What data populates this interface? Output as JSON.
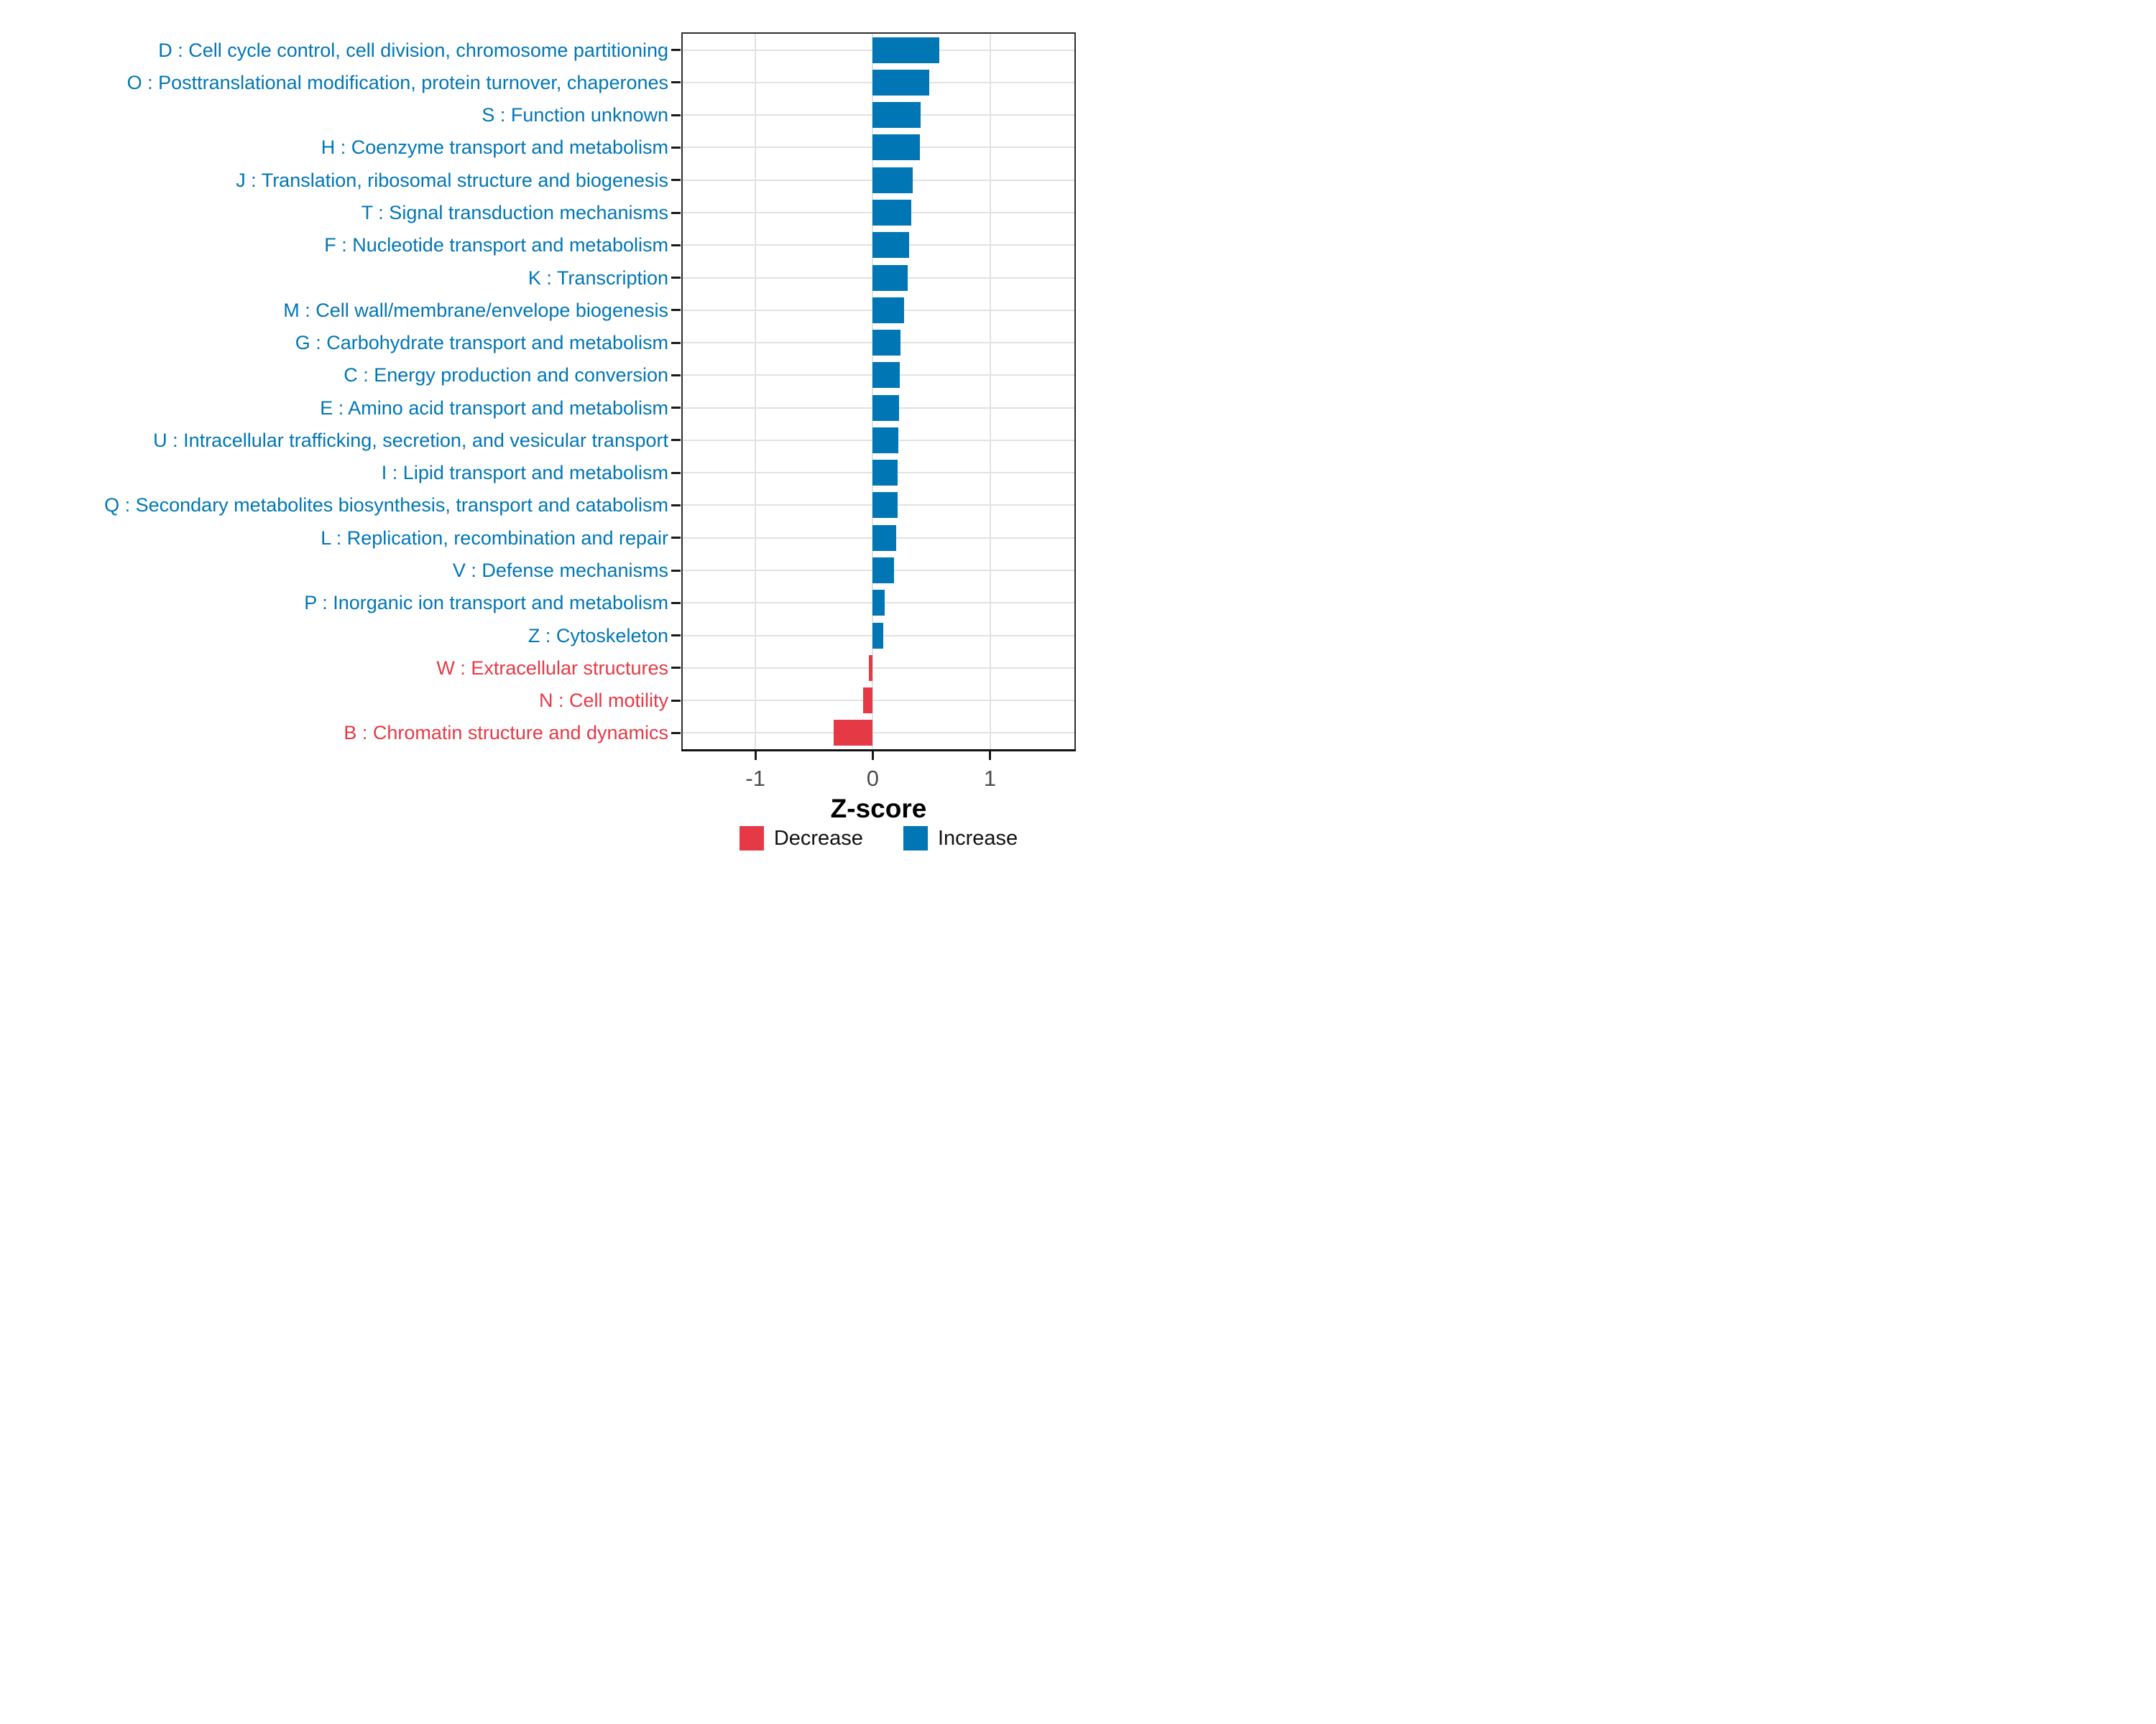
{
  "chart_data": {
    "type": "bar",
    "orientation": "horizontal",
    "xlabel": "Z-score",
    "x_ticks": [
      -1,
      0,
      1
    ],
    "xlim": [
      -1.62,
      1.72
    ],
    "grid": "major-only",
    "legend_position": "bottom-center",
    "colors": {
      "increase": "#0076B5",
      "decrease": "#E63946",
      "gridline": "#E2E2E2",
      "tick_label": "#4D4D4D",
      "panel_border": "#2E2E2E"
    },
    "legend": [
      {
        "label": "Decrease",
        "color": "#E63946"
      },
      {
        "label": "Increase",
        "color": "#0076B5"
      }
    ],
    "items": [
      {
        "label": "D : Cell cycle control, cell division, chromosome partitioning",
        "value": 0.57,
        "direction": "increase"
      },
      {
        "label": "O : Posttranslational modification, protein turnover, chaperones",
        "value": 0.48,
        "direction": "increase"
      },
      {
        "label": "S : Function unknown",
        "value": 0.41,
        "direction": "increase"
      },
      {
        "label": "H : Coenzyme transport and metabolism",
        "value": 0.4,
        "direction": "increase"
      },
      {
        "label": "J : Translation, ribosomal structure and biogenesis",
        "value": 0.34,
        "direction": "increase"
      },
      {
        "label": "T : Signal transduction mechanisms",
        "value": 0.33,
        "direction": "increase"
      },
      {
        "label": "F : Nucleotide transport and metabolism",
        "value": 0.31,
        "direction": "increase"
      },
      {
        "label": "K : Transcription",
        "value": 0.3,
        "direction": "increase"
      },
      {
        "label": "M : Cell wall/membrane/envelope biogenesis",
        "value": 0.27,
        "direction": "increase"
      },
      {
        "label": "G : Carbohydrate transport and metabolism",
        "value": 0.235,
        "direction": "increase"
      },
      {
        "label": "C : Energy production and conversion",
        "value": 0.23,
        "direction": "increase"
      },
      {
        "label": "E : Amino acid transport and metabolism",
        "value": 0.225,
        "direction": "increase"
      },
      {
        "label": "U : Intracellular trafficking, secretion, and vesicular transport",
        "value": 0.22,
        "direction": "increase"
      },
      {
        "label": "I : Lipid transport and metabolism",
        "value": 0.215,
        "direction": "increase"
      },
      {
        "label": "Q : Secondary metabolites biosynthesis, transport and catabolism",
        "value": 0.21,
        "direction": "increase"
      },
      {
        "label": "L : Replication, recombination and repair",
        "value": 0.2,
        "direction": "increase"
      },
      {
        "label": "V : Defense mechanisms",
        "value": 0.18,
        "direction": "increase"
      },
      {
        "label": "P : Inorganic ion transport and metabolism",
        "value": 0.1,
        "direction": "increase"
      },
      {
        "label": "Z : Cytoskeleton",
        "value": 0.09,
        "direction": "increase"
      },
      {
        "label": "W : Extracellular structures",
        "value": -0.03,
        "direction": "decrease"
      },
      {
        "label": "N : Cell motility",
        "value": -0.08,
        "direction": "decrease"
      },
      {
        "label": "B : Chromatin structure and dynamics",
        "value": -0.33,
        "direction": "decrease"
      }
    ]
  }
}
